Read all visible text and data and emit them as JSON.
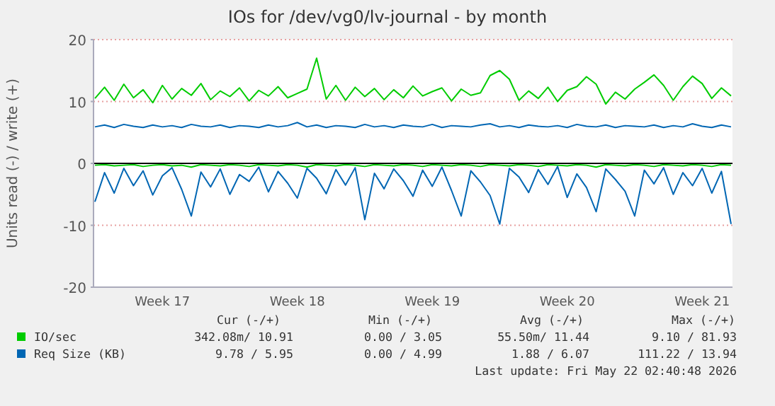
{
  "chart_data": {
    "type": "line",
    "title": "IOs for /dev/vg0/lv-journal - by month",
    "ylabel": "Units read (-) / write (+)",
    "categories": [
      null,
      null,
      null,
      null,
      null,
      null,
      null,
      "Week 17",
      null,
      null,
      null,
      null,
      null,
      null,
      null,
      null,
      null,
      null,
      null,
      null,
      null,
      "Week 18",
      null,
      null,
      null,
      null,
      null,
      null,
      null,
      null,
      null,
      null,
      null,
      null,
      null,
      "Week 19",
      null,
      null,
      null,
      null,
      null,
      null,
      null,
      null,
      null,
      null,
      null,
      null,
      null,
      "Week 20",
      null,
      null,
      null,
      null,
      null,
      null,
      null,
      null,
      null,
      null,
      null,
      null,
      null,
      "Week 21",
      null,
      null,
      null
    ],
    "series": [
      {
        "name": "IO/sec",
        "color": "#00cc00",
        "values": [
          10.5,
          12.3,
          10.2,
          12.8,
          10.6,
          11.9,
          9.8,
          12.6,
          10.4,
          12.1,
          11.0,
          12.9,
          10.3,
          11.7,
          10.8,
          12.2,
          10.1,
          11.8,
          10.9,
          12.4,
          10.6,
          11.3,
          12.0,
          17.0,
          10.4,
          12.6,
          10.2,
          12.3,
          10.8,
          12.1,
          10.3,
          11.9,
          10.6,
          12.5,
          10.9,
          11.6,
          12.2,
          10.1,
          12.0,
          11.0,
          11.4,
          14.2,
          15.0,
          13.6,
          10.2,
          11.7,
          10.5,
          12.3,
          10.0,
          11.8,
          12.4,
          14.0,
          12.8,
          9.6,
          11.5,
          10.4,
          12.0,
          13.1,
          14.3,
          12.6,
          10.2,
          12.4,
          14.1,
          12.9,
          10.5,
          12.2,
          10.9
        ]
      },
      {
        "name": "Req Size (KB)",
        "color": "#0066b3",
        "values": [
          5.9,
          6.2,
          5.8,
          6.3,
          6.0,
          5.8,
          6.2,
          5.9,
          6.1,
          5.8,
          6.3,
          6.0,
          5.9,
          6.2,
          5.8,
          6.1,
          6.0,
          5.8,
          6.2,
          5.9,
          6.1,
          6.6,
          5.9,
          6.2,
          5.8,
          6.1,
          6.0,
          5.8,
          6.3,
          5.9,
          6.1,
          5.8,
          6.2,
          6.0,
          5.9,
          6.3,
          5.8,
          6.1,
          6.0,
          5.9,
          6.2,
          6.4,
          5.9,
          6.1,
          5.8,
          6.2,
          6.0,
          5.9,
          6.1,
          5.8,
          6.3,
          6.0,
          5.9,
          6.2,
          5.8,
          6.1,
          6.0,
          5.9,
          6.2,
          5.8,
          6.1,
          5.9,
          6.4,
          6.0,
          5.8,
          6.2,
          5.9
        ]
      },
      {
        "color": "#00cc00",
        "values": [
          -0.3,
          -0.2,
          -0.4,
          -0.3,
          -0.2,
          -0.5,
          -0.3,
          -0.2,
          -0.4,
          -0.3,
          -0.6,
          -0.2,
          -0.3,
          -0.4,
          -0.2,
          -0.3,
          -0.5,
          -0.2,
          -0.3,
          -0.4,
          -0.2,
          -0.3,
          -0.6,
          -0.2,
          -0.3,
          -0.4,
          -0.2,
          -0.3,
          -0.5,
          -0.2,
          -0.3,
          -0.4,
          -0.2,
          -0.3,
          -0.5,
          -0.2,
          -0.3,
          -0.4,
          -0.2,
          -0.3,
          -0.5,
          -0.2,
          -0.3,
          -0.4,
          -0.2,
          -0.3,
          -0.5,
          -0.2,
          -0.3,
          -0.4,
          -0.2,
          -0.3,
          -0.6,
          -0.2,
          -0.3,
          -0.4,
          -0.2,
          -0.3,
          -0.5,
          -0.2,
          -0.3,
          -0.4,
          -0.2,
          -0.3,
          -0.5,
          -0.2,
          -0.3
        ]
      },
      {
        "color": "#0066b3",
        "values": [
          -6.2,
          -1.5,
          -4.8,
          -0.8,
          -3.6,
          -1.2,
          -5.1,
          -2.0,
          -0.7,
          -4.2,
          -8.5,
          -1.4,
          -3.8,
          -0.9,
          -5.0,
          -1.8,
          -2.9,
          -0.6,
          -4.6,
          -1.3,
          -3.2,
          -5.6,
          -0.8,
          -2.4,
          -4.9,
          -1.0,
          -3.5,
          -0.7,
          -9.1,
          -1.6,
          -4.1,
          -0.9,
          -2.8,
          -5.3,
          -1.1,
          -3.7,
          -0.6,
          -4.4,
          -8.5,
          -1.2,
          -3.0,
          -5.2,
          -9.8,
          -0.8,
          -2.2,
          -4.7,
          -1.0,
          -3.4,
          -0.5,
          -5.5,
          -1.7,
          -3.9,
          -7.8,
          -0.9,
          -2.6,
          -4.5,
          -8.5,
          -1.1,
          -3.3,
          -0.7,
          -5.0,
          -1.5,
          -3.6,
          -0.8,
          -4.8,
          -1.3,
          -9.8
        ]
      }
    ],
    "ylim": [
      -20,
      20
    ],
    "yticks": [
      -20,
      -10,
      0,
      10,
      20
    ],
    "grid": "y",
    "legend": "bottom",
    "annotations": [
      "Cur (-/+)",
      "Min (-/+)",
      "Avg (-/+)",
      "Max (-/+)",
      "342.08m/ 10.91",
      "0.00 /  3.05",
      "55.50m/ 11.44",
      "9.10 / 81.93",
      "9.78 /  5.95",
      "0.00 /  4.99",
      "1.88 /  6.07",
      "111.22 / 13.94",
      "Last update: Fri May 22 02:40:48 2026"
    ]
  }
}
